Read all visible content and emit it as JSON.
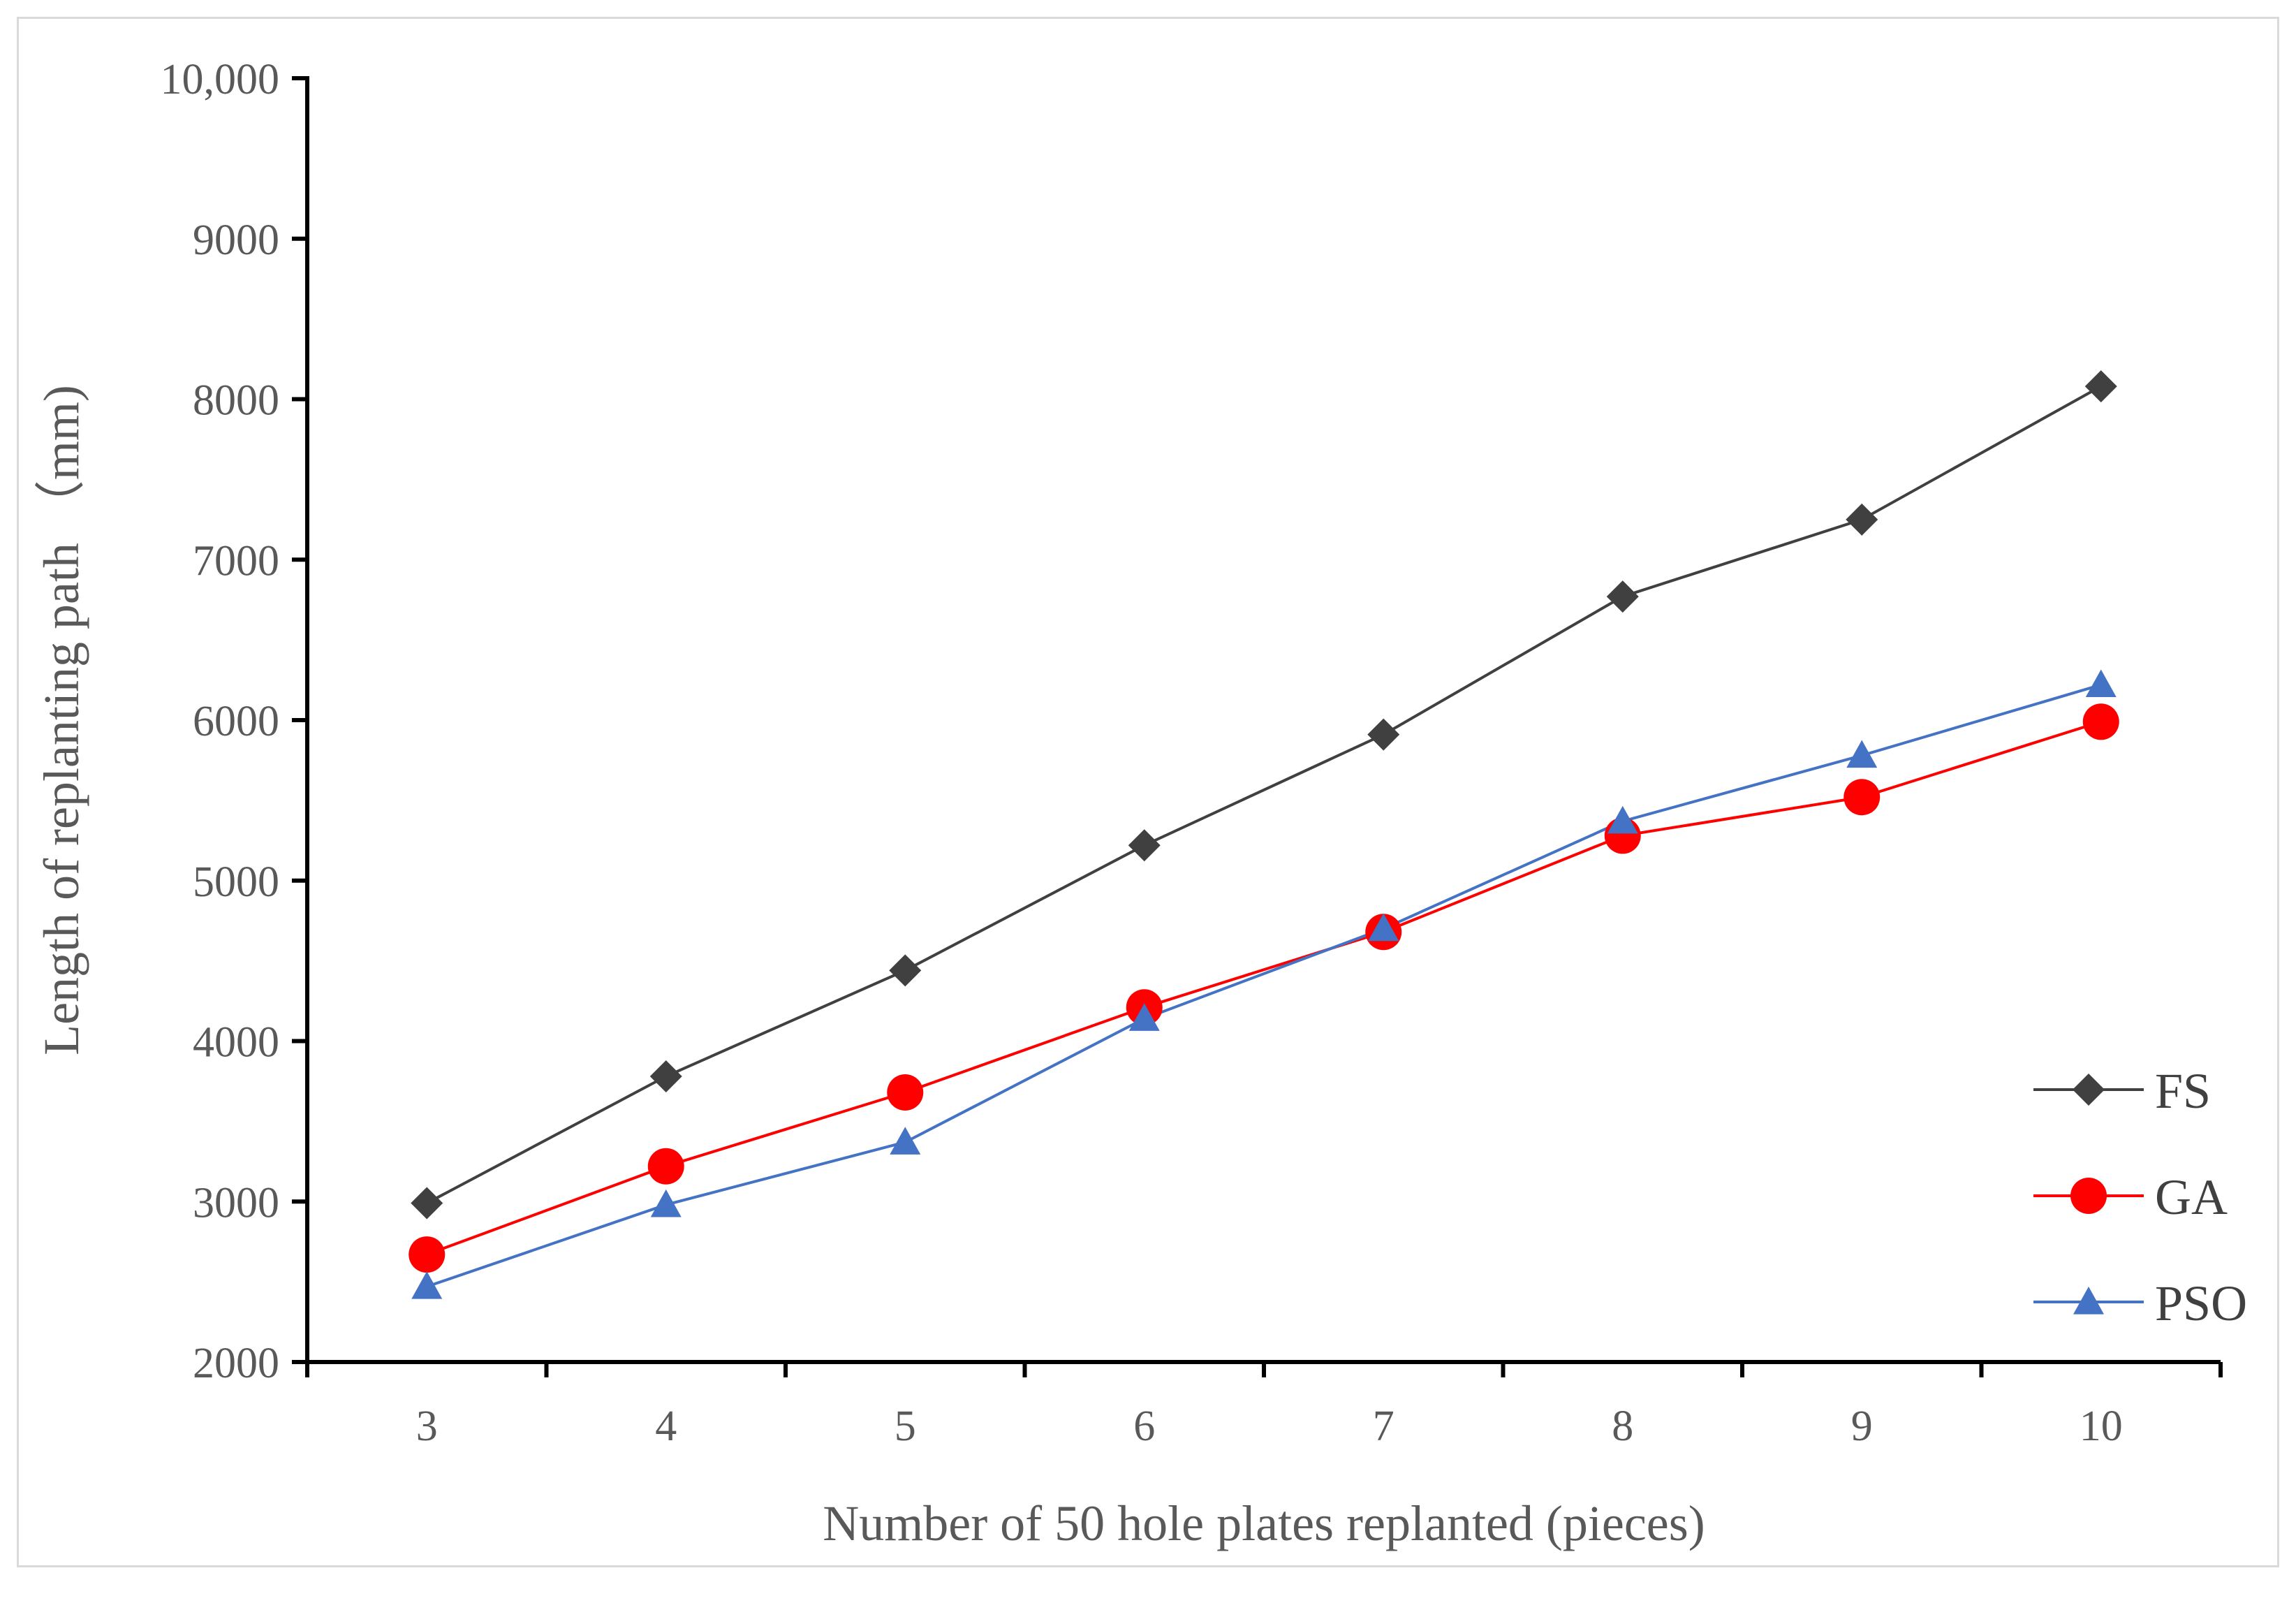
{
  "chart_data": {
    "type": "line",
    "title": "",
    "xlabel": "Number of 50 hole plates replanted (pieces)",
    "ylabel": "Length of replanting path （mm)",
    "categories": [
      "3",
      "4",
      "5",
      "6",
      "7",
      "8",
      "9",
      "10"
    ],
    "ylim": [
      2000,
      10000
    ],
    "yticks": [
      2000,
      3000,
      4000,
      5000,
      6000,
      7000,
      8000,
      9000,
      10000
    ],
    "ytick_labels": [
      "2000",
      "3000",
      "4000",
      "5000",
      "6000",
      "7000",
      "8000",
      "9000",
      "10,000"
    ],
    "grid": false,
    "legend_position": "bottom-right",
    "series": [
      {
        "name": "FS",
        "color": "#404040",
        "marker": "diamond",
        "values": [
          2990,
          3780,
          4440,
          5220,
          5910,
          6770,
          7250,
          8080
        ]
      },
      {
        "name": "GA",
        "color": "#ff0000",
        "marker": "circle",
        "values": [
          2670,
          3220,
          3680,
          4210,
          4680,
          5280,
          5520,
          5990
        ]
      },
      {
        "name": "PSO",
        "color": "#4472c4",
        "marker": "triangle",
        "values": [
          2470,
          2980,
          3370,
          4140,
          4700,
          5370,
          5780,
          6220
        ]
      }
    ]
  }
}
